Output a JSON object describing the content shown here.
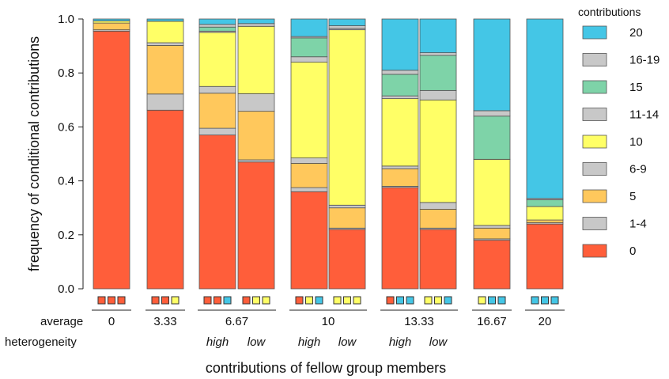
{
  "chart_data": {
    "type": "stacked-bar",
    "ylabel": "frequency of conditional contributions",
    "xlabel": "contributions of fellow group members",
    "yticks": [
      "0.0",
      "0.2",
      "0.4",
      "0.6",
      "0.8",
      "1.0"
    ],
    "ylim": [
      0,
      1
    ],
    "grid": false,
    "legend": {
      "title": "contributions",
      "placement": "right",
      "entries": [
        {
          "label": "20",
          "color": "#44C6E6"
        },
        {
          "label": "16-19",
          "color": "#C8C8C8"
        },
        {
          "label": "15",
          "color": "#7ED3A8"
        },
        {
          "label": "11-14",
          "color": "#C8C8C8"
        },
        {
          "label": "10",
          "color": "#FFFF66"
        },
        {
          "label": "6-9",
          "color": "#C8C8C8"
        },
        {
          "label": "5",
          "color": "#FFC85C"
        },
        {
          "label": "1-4",
          "color": "#C8C8C8"
        },
        {
          "label": "0",
          "color": "#FF5E3A"
        }
      ]
    },
    "stack_order": [
      "0",
      "1-4",
      "5",
      "6-9",
      "10",
      "11-14",
      "15",
      "16-19",
      "20"
    ],
    "row_labels": {
      "average": "average",
      "heterogeneity": "heterogeneity"
    },
    "groups": [
      {
        "average": "0",
        "bars": [
          {
            "heterogeneity": "",
            "fellow_contributions": [
              "0",
              "0",
              "0"
            ],
            "values": [
              0.955,
              0.005,
              0.025,
              0.0,
              0.008,
              0.0,
              0.0,
              0.0,
              0.007
            ]
          }
        ]
      },
      {
        "average": "3.33",
        "bars": [
          {
            "heterogeneity": "",
            "fellow_contributions": [
              "0",
              "0",
              "10"
            ],
            "values": [
              0.662,
              0.06,
              0.18,
              0.01,
              0.08,
              0.0,
              0.0,
              0.0,
              0.008
            ]
          }
        ]
      },
      {
        "average": "6.67",
        "bars": [
          {
            "heterogeneity": "high",
            "fellow_contributions": [
              "0",
              "0",
              "20"
            ],
            "values": [
              0.57,
              0.025,
              0.13,
              0.025,
              0.2,
              0.005,
              0.015,
              0.01,
              0.02
            ]
          },
          {
            "heterogeneity": "low",
            "fellow_contributions": [
              "0",
              "10",
              "10"
            ],
            "values": [
              0.47,
              0.008,
              0.18,
              0.065,
              0.25,
              0.0,
              0.0,
              0.01,
              0.017
            ]
          }
        ]
      },
      {
        "average": "10",
        "bars": [
          {
            "heterogeneity": "high",
            "fellow_contributions": [
              "0",
              "10",
              "20"
            ],
            "values": [
              0.36,
              0.015,
              0.09,
              0.02,
              0.355,
              0.02,
              0.07,
              0.005,
              0.065
            ]
          },
          {
            "heterogeneity": "low",
            "fellow_contributions": [
              "10",
              "10",
              "10"
            ],
            "values": [
              0.22,
              0.005,
              0.075,
              0.01,
              0.65,
              0.005,
              0.0,
              0.01,
              0.025
            ]
          }
        ]
      },
      {
        "average": "13.33",
        "bars": [
          {
            "heterogeneity": "high",
            "fellow_contributions": [
              "0",
              "20",
              "20"
            ],
            "values": [
              0.375,
              0.005,
              0.065,
              0.01,
              0.25,
              0.01,
              0.08,
              0.015,
              0.19
            ]
          },
          {
            "heterogeneity": "low",
            "fellow_contributions": [
              "10",
              "10",
              "20"
            ],
            "values": [
              0.22,
              0.005,
              0.07,
              0.025,
              0.38,
              0.035,
              0.13,
              0.01,
              0.125
            ]
          }
        ]
      },
      {
        "average": "16.67",
        "bars": [
          {
            "heterogeneity": "",
            "fellow_contributions": [
              "10",
              "20",
              "20"
            ],
            "values": [
              0.18,
              0.005,
              0.04,
              0.01,
              0.245,
              0.0,
              0.16,
              0.02,
              0.34
            ]
          }
        ]
      },
      {
        "average": "20",
        "bars": [
          {
            "heterogeneity": "",
            "fellow_contributions": [
              "20",
              "20",
              "20"
            ],
            "values": [
              0.24,
              0.005,
              0.01,
              0.0,
              0.05,
              0.0,
              0.025,
              0.005,
              0.665
            ]
          }
        ]
      }
    ]
  }
}
